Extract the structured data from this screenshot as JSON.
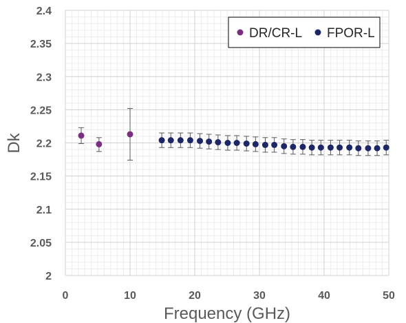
{
  "chart_data": {
    "type": "scatter",
    "title": "",
    "xlabel": "Frequency (GHz)",
    "ylabel": "Dk",
    "xlim": [
      0,
      50
    ],
    "ylim": [
      2,
      2.4
    ],
    "xticks": [
      "0",
      "10",
      "20",
      "30",
      "40",
      "50"
    ],
    "yticks": [
      "2",
      "2.05",
      "2.1",
      "2.15",
      "2.2",
      "2.25",
      "2.3",
      "2.35",
      "2.4"
    ],
    "grid": true,
    "legend_position": "top-right",
    "series": [
      {
        "name": "DR/CR-L",
        "color": "#7B2D7F",
        "x": [
          2.45,
          5.2,
          10
        ],
        "y": [
          2.211,
          2.198,
          2.213
        ],
        "err_low": [
          0.012,
          0.011,
          0.039
        ],
        "err_high": [
          0.012,
          0.01,
          0.039
        ]
      },
      {
        "name": "FPOR-L",
        "color": "#1E2766",
        "x": [
          14.9,
          16.3,
          17.8,
          19.3,
          20.8,
          22.2,
          23.6,
          25.1,
          26.5,
          28.0,
          29.4,
          30.9,
          32.3,
          33.8,
          35.2,
          36.7,
          38.1,
          39.5,
          41.0,
          42.4,
          43.9,
          45.3,
          46.8,
          48.2,
          49.6
        ],
        "y": [
          2.204,
          2.204,
          2.204,
          2.204,
          2.203,
          2.202,
          2.201,
          2.2,
          2.2,
          2.199,
          2.198,
          2.197,
          2.197,
          2.195,
          2.194,
          2.194,
          2.193,
          2.193,
          2.193,
          2.193,
          2.193,
          2.192,
          2.192,
          2.192,
          2.193
        ],
        "err": 0.011
      }
    ]
  }
}
